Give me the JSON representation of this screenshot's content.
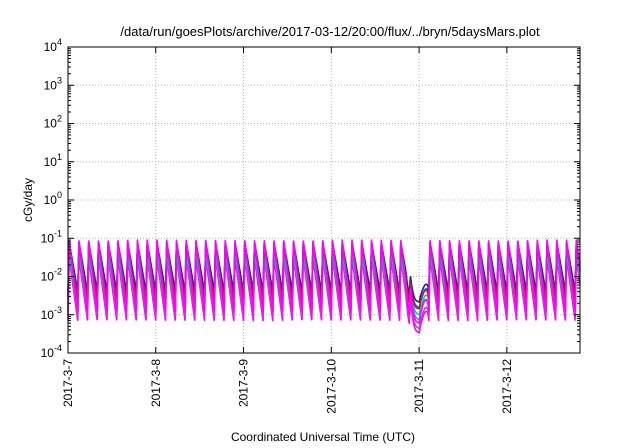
{
  "chart_data": {
    "type": "line",
    "title": "/data/run/goesPlots/archive/2017-03-12/20:00/flux/../bryn/5daysMars.plot",
    "xlabel": "Coordinated Universal Time (UTC)",
    "ylabel": "cGy/day",
    "y_scale": "log",
    "ylim": [
      0.0001,
      10000
    ],
    "xlim": [
      "2017-03-07 00:00",
      "2017-03-12 20:00"
    ],
    "grid": true,
    "legend": "none",
    "x_tick_labels": [
      "2017-3-7",
      "2017-3-8",
      "2017-3-9",
      "2017-3-10",
      "2017-3-11",
      "2017-3-12"
    ],
    "y_tick_labels": [
      {
        "base": "10",
        "exp": "-4"
      },
      {
        "base": "10",
        "exp": "-3"
      },
      {
        "base": "10",
        "exp": "-2"
      },
      {
        "base": "10",
        "exp": "-1"
      },
      {
        "base": "10",
        "exp": "0"
      },
      {
        "base": "10",
        "exp": "1"
      },
      {
        "base": "10",
        "exp": "2"
      },
      {
        "base": "10",
        "exp": "3"
      },
      {
        "base": "10",
        "exp": "4"
      }
    ],
    "pattern": {
      "cycles_per_day": 9,
      "dip_day_start": 3.85,
      "dip_day_end": 4.1
    },
    "series": [
      {
        "color": "#ff00ff",
        "peak": 0.03,
        "trough": 0.0007,
        "dip_min": 0.00015
      },
      {
        "color": "#c040c0",
        "peak": 0.035,
        "trough": 0.0009,
        "dip_min": 0.0002
      },
      {
        "color": "#00bfbf",
        "peak": 0.045,
        "trough": 0.0015,
        "dip_min": 0.00035
      },
      {
        "color": "#00d0a0",
        "peak": 0.055,
        "trough": 0.002,
        "dip_min": 0.0005
      },
      {
        "color": "#0060ff",
        "peak": 0.07,
        "trough": 0.003,
        "dip_min": 0.0008
      },
      {
        "color": "#2020a0",
        "peak": 0.08,
        "trough": 0.004,
        "dip_min": 0.0012
      },
      {
        "color": "#c02020",
        "peak": 0.065,
        "trough": 0.0025,
        "dip_min": 0.0009
      },
      {
        "color": "#ff00ff",
        "peak": 0.09,
        "trough": 0.0012,
        "dip_min": 0.0003
      }
    ],
    "colors": {
      "grid": "#b8b8b8",
      "axis": "#000000",
      "background": "#ffffff"
    }
  }
}
